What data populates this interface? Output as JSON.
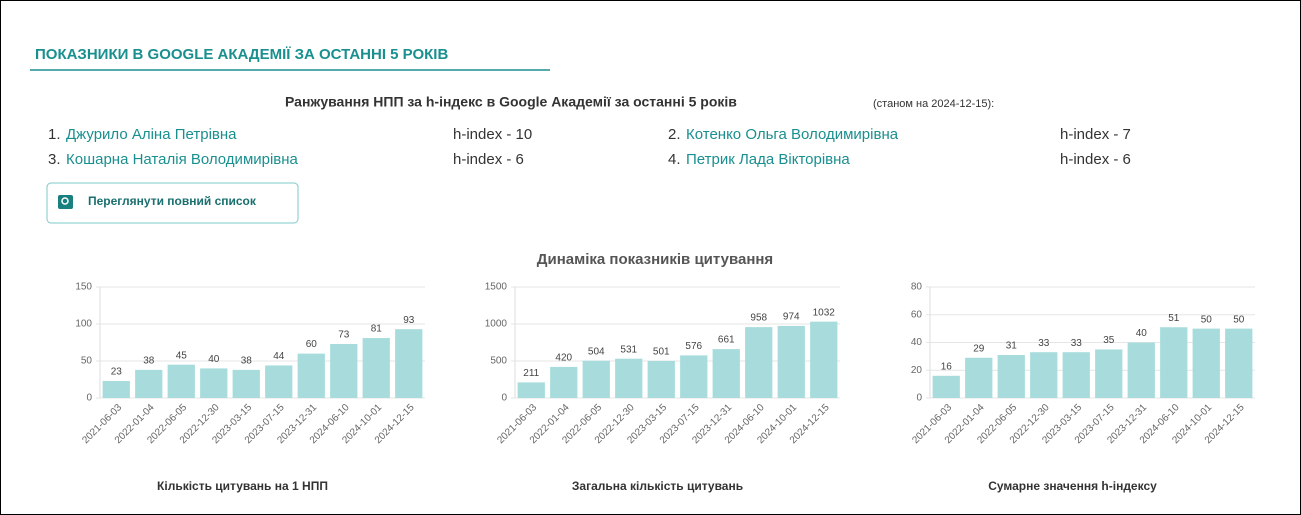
{
  "header": {
    "title": "ПОКАЗНИКИ В GOOGLE АКАДЕМІЇ ЗА ОСТАННІ 5 РОКІВ"
  },
  "ranking": {
    "title": "Ранжування НПП за h-індекс в Google Академії за останні 5 років",
    "note": "(станом на 2024-12-15):",
    "entries": [
      {
        "rank": "1.",
        "name": "Джурило Аліна Петрівна",
        "index": "h-index - 10"
      },
      {
        "rank": "2.",
        "name": "Котенко Ольга Володимирівна",
        "index": "h-index - 7"
      },
      {
        "rank": "3.",
        "name": "Кошарна Наталія Володимирівна",
        "index": "h-index - 6"
      },
      {
        "rank": "4.",
        "name": "Петрик Лада Вікторівна",
        "index": "h-index - 6"
      }
    ]
  },
  "button": {
    "label": "Переглянути повний список"
  },
  "charts_title": "Динаміка показників цитування",
  "chart_data": [
    {
      "type": "bar",
      "xlabel": "Кількість цитувань на 1 НПП",
      "color": "#a8dcdc",
      "categories": [
        "2021-06-03",
        "2022-01-04",
        "2022-06-05",
        "2022-12-30",
        "2023-03-15",
        "2023-07-15",
        "2023-12-31",
        "2024-06-10",
        "2024-10-01",
        "2024-12-15"
      ],
      "values": [
        23,
        38,
        45,
        40,
        38,
        44,
        60,
        73,
        81,
        93
      ],
      "ylim": [
        0,
        150
      ],
      "yticks": [
        0,
        50,
        100,
        150
      ],
      "grid": true
    },
    {
      "type": "bar",
      "xlabel": "Загальна кількість цитувань",
      "color": "#a8dcdc",
      "categories": [
        "2021-06-03",
        "2022-01-04",
        "2022-06-05",
        "2022-12-30",
        "2023-03-15",
        "2023-07-15",
        "2023-12-31",
        "2024-06-10",
        "2024-10-01",
        "2024-12-15"
      ],
      "values": [
        211,
        420,
        504,
        531,
        501,
        576,
        661,
        958,
        974,
        1032
      ],
      "ylim": [
        0,
        1500
      ],
      "yticks": [
        0,
        500,
        1000,
        1500
      ],
      "grid": true
    },
    {
      "type": "bar",
      "xlabel": "Сумарне значення h-індексу",
      "color": "#a8dcdc",
      "categories": [
        "2021-06-03",
        "2022-01-04",
        "2022-06-05",
        "2022-12-30",
        "2023-03-15",
        "2023-07-15",
        "2023-12-31",
        "2024-06-10",
        "2024-10-01",
        "2024-12-15"
      ],
      "values": [
        16,
        29,
        31,
        33,
        33,
        35,
        40,
        51,
        50,
        50
      ],
      "ylim": [
        0,
        80
      ],
      "yticks": [
        0,
        20,
        40,
        60,
        80
      ],
      "grid": true
    }
  ]
}
